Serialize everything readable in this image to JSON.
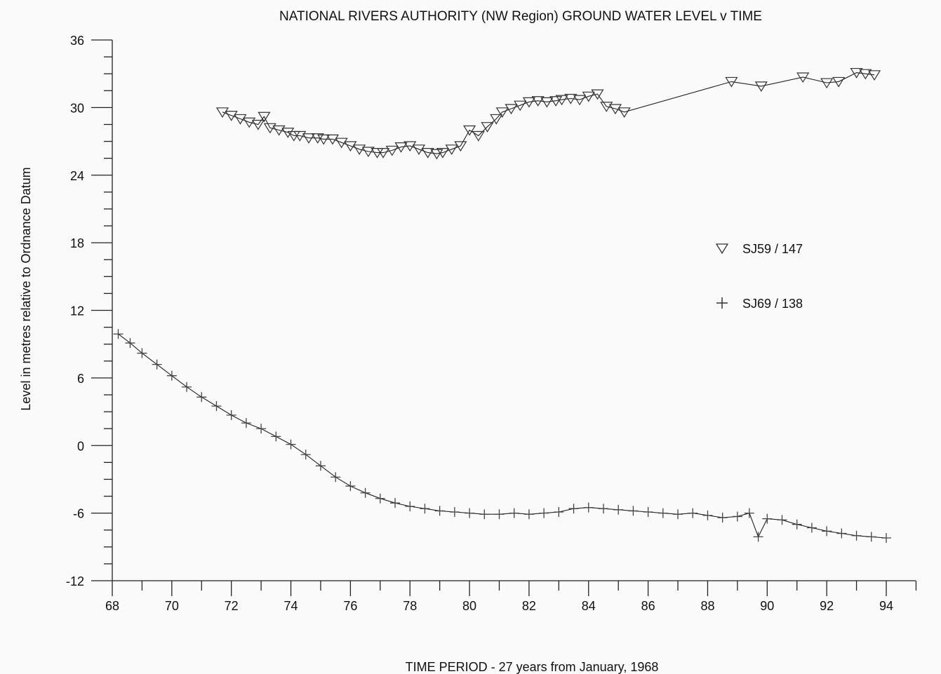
{
  "chart_data": {
    "type": "scatter",
    "title": "NATIONAL RIVERS AUTHORITY (NW Region)   GROUND WATER LEVEL v TIME",
    "xlabel": "TIME PERIOD - 27 years from January, 1968",
    "ylabel": "Level in metres relative to Ordnance Datum",
    "xlim": [
      68,
      95
    ],
    "ylim": [
      -12,
      36
    ],
    "xticks": [
      "68",
      "70",
      "72",
      "74",
      "76",
      "78",
      "80",
      "82",
      "84",
      "86",
      "88",
      "90",
      "92",
      "94"
    ],
    "yticks": [
      "36",
      "30",
      "24",
      "18",
      "12",
      "6",
      "0",
      "-6",
      "-12"
    ],
    "legend_position": "right",
    "series": [
      {
        "name": "SJ59 / 147",
        "marker": "triangle-down",
        "x": [
          71.7,
          72.0,
          72.3,
          72.6,
          72.9,
          73.1,
          73.3,
          73.6,
          73.9,
          74.1,
          74.3,
          74.6,
          74.9,
          75.1,
          75.4,
          75.7,
          76.0,
          76.3,
          76.6,
          76.9,
          77.1,
          77.4,
          77.7,
          78.0,
          78.3,
          78.6,
          78.9,
          79.1,
          79.4,
          79.7,
          80.0,
          80.3,
          80.6,
          80.9,
          81.1,
          81.4,
          81.7,
          82.0,
          82.3,
          82.6,
          82.9,
          83.1,
          83.4,
          83.7,
          84.0,
          84.3,
          84.6,
          84.9,
          85.2,
          88.8,
          89.8,
          91.2,
          92.0,
          92.4,
          93.0,
          93.3,
          93.6
        ],
        "y": [
          29.6,
          29.3,
          29.0,
          28.7,
          28.5,
          29.2,
          28.2,
          28.0,
          27.8,
          27.5,
          27.5,
          27.3,
          27.3,
          27.2,
          27.2,
          26.9,
          26.6,
          26.3,
          26.1,
          26.0,
          26.0,
          26.2,
          26.5,
          26.6,
          26.3,
          26.0,
          25.9,
          26.0,
          26.3,
          26.6,
          28.0,
          27.5,
          28.3,
          29.0,
          29.6,
          29.9,
          30.2,
          30.5,
          30.6,
          30.5,
          30.6,
          30.7,
          30.8,
          30.7,
          31.0,
          31.2,
          30.1,
          29.9,
          29.6,
          32.3,
          31.9,
          32.7,
          32.2,
          32.3,
          33.1,
          33.0,
          32.9
        ]
      },
      {
        "name": "SJ69 / 138",
        "marker": "plus",
        "x": [
          68.2,
          68.6,
          69.0,
          69.5,
          70.0,
          70.5,
          71.0,
          71.5,
          72.0,
          72.5,
          73.0,
          73.5,
          74.0,
          74.5,
          75.0,
          75.5,
          76.0,
          76.5,
          77.0,
          77.5,
          78.0,
          78.5,
          79.0,
          79.5,
          80.0,
          80.5,
          81.0,
          81.5,
          82.0,
          82.5,
          83.0,
          83.5,
          84.0,
          84.5,
          85.0,
          85.5,
          86.0,
          86.5,
          87.0,
          87.5,
          88.0,
          88.5,
          89.0,
          89.4,
          89.7,
          90.0,
          90.5,
          91.0,
          91.5,
          92.0,
          92.5,
          93.0,
          93.5,
          94.0
        ],
        "y": [
          9.9,
          9.1,
          8.2,
          7.2,
          6.2,
          5.2,
          4.3,
          3.5,
          2.7,
          2.0,
          1.5,
          0.8,
          0.1,
          -0.8,
          -1.8,
          -2.8,
          -3.6,
          -4.2,
          -4.7,
          -5.1,
          -5.4,
          -5.6,
          -5.8,
          -5.9,
          -6.0,
          -6.1,
          -6.1,
          -6.0,
          -6.1,
          -6.0,
          -5.9,
          -5.6,
          -5.5,
          -5.6,
          -5.7,
          -5.8,
          -5.9,
          -6.0,
          -6.1,
          -6.0,
          -6.2,
          -6.4,
          -6.3,
          -6.0,
          -8.1,
          -6.5,
          -6.6,
          -7.0,
          -7.3,
          -7.6,
          -7.8,
          -8.0,
          -8.1,
          -8.2
        ]
      }
    ]
  }
}
